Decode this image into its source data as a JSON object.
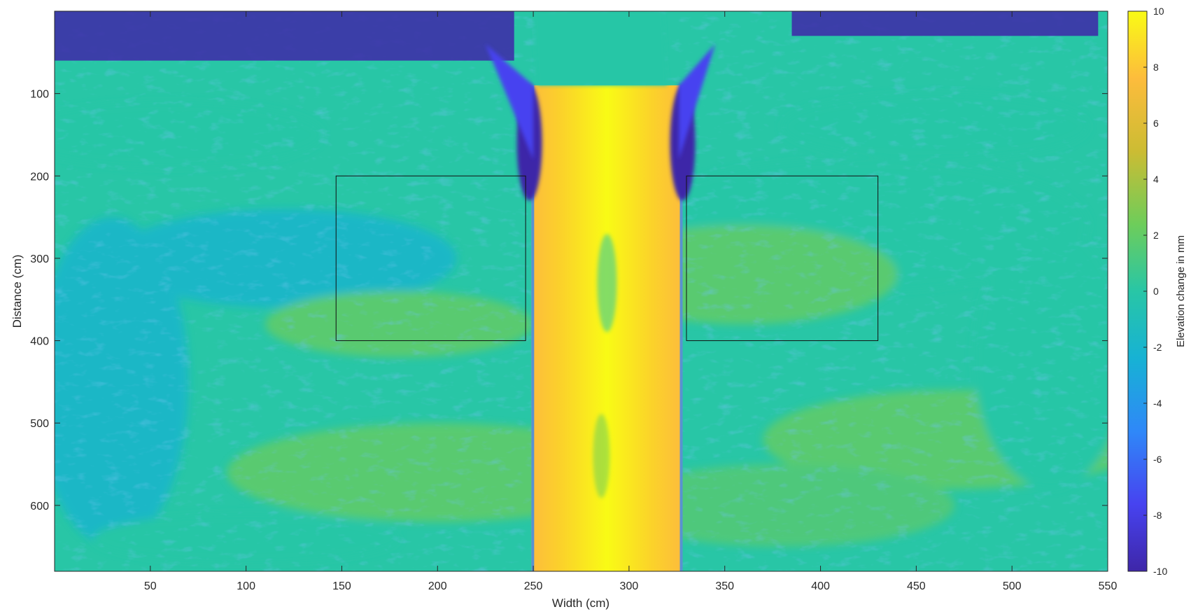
{
  "chart_data": {
    "type": "heatmap",
    "title": "",
    "xlabel": "Width (cm)",
    "ylabel": "Distance (cm)",
    "xlim": [
      0,
      550
    ],
    "ylim": [
      680,
      0
    ],
    "y_direction": "reversed",
    "x_ticks": [
      50,
      100,
      150,
      200,
      250,
      300,
      350,
      400,
      450,
      500,
      550
    ],
    "y_ticks": [
      100,
      200,
      300,
      400,
      500,
      600
    ],
    "colorbar": {
      "label": "Elevation change in mm",
      "range": [
        -10,
        10
      ],
      "ticks": [
        10,
        8,
        6,
        4,
        2,
        0,
        -2,
        -4,
        -6,
        -8,
        -10
      ],
      "colormap": "parula",
      "colors": [
        "#3e26a8",
        "#4743f0",
        "#2f88f8",
        "#17b2d4",
        "#28c6a6",
        "#6ecd5a",
        "#ccbc33",
        "#fdbc3c",
        "#f9fb15"
      ]
    },
    "grid": false,
    "background_value_mm": 1,
    "features": [
      {
        "kind": "channel-deposition",
        "x_range": [
          249,
          328
        ],
        "y_range": [
          90,
          680
        ],
        "value_mm": 10
      },
      {
        "kind": "bank-scour",
        "x": 248,
        "y_range": [
          90,
          230
        ],
        "value_mm": -9
      },
      {
        "kind": "bank-scour",
        "x": 328,
        "y_range": [
          90,
          230
        ],
        "value_mm": -9
      },
      {
        "kind": "inlet-scour",
        "x_range": [
          0,
          240
        ],
        "y_range": [
          0,
          60
        ],
        "value_mm": -10
      },
      {
        "kind": "inlet-scour",
        "x_range": [
          385,
          545
        ],
        "y_range": [
          0,
          30
        ],
        "value_mm": -10
      }
    ],
    "annotations": [
      {
        "kind": "rectangle",
        "x_range": [
          147,
          246
        ],
        "y_range": [
          200,
          400
        ]
      },
      {
        "kind": "rectangle",
        "x_range": [
          330,
          430
        ],
        "y_range": [
          200,
          400
        ]
      }
    ]
  }
}
